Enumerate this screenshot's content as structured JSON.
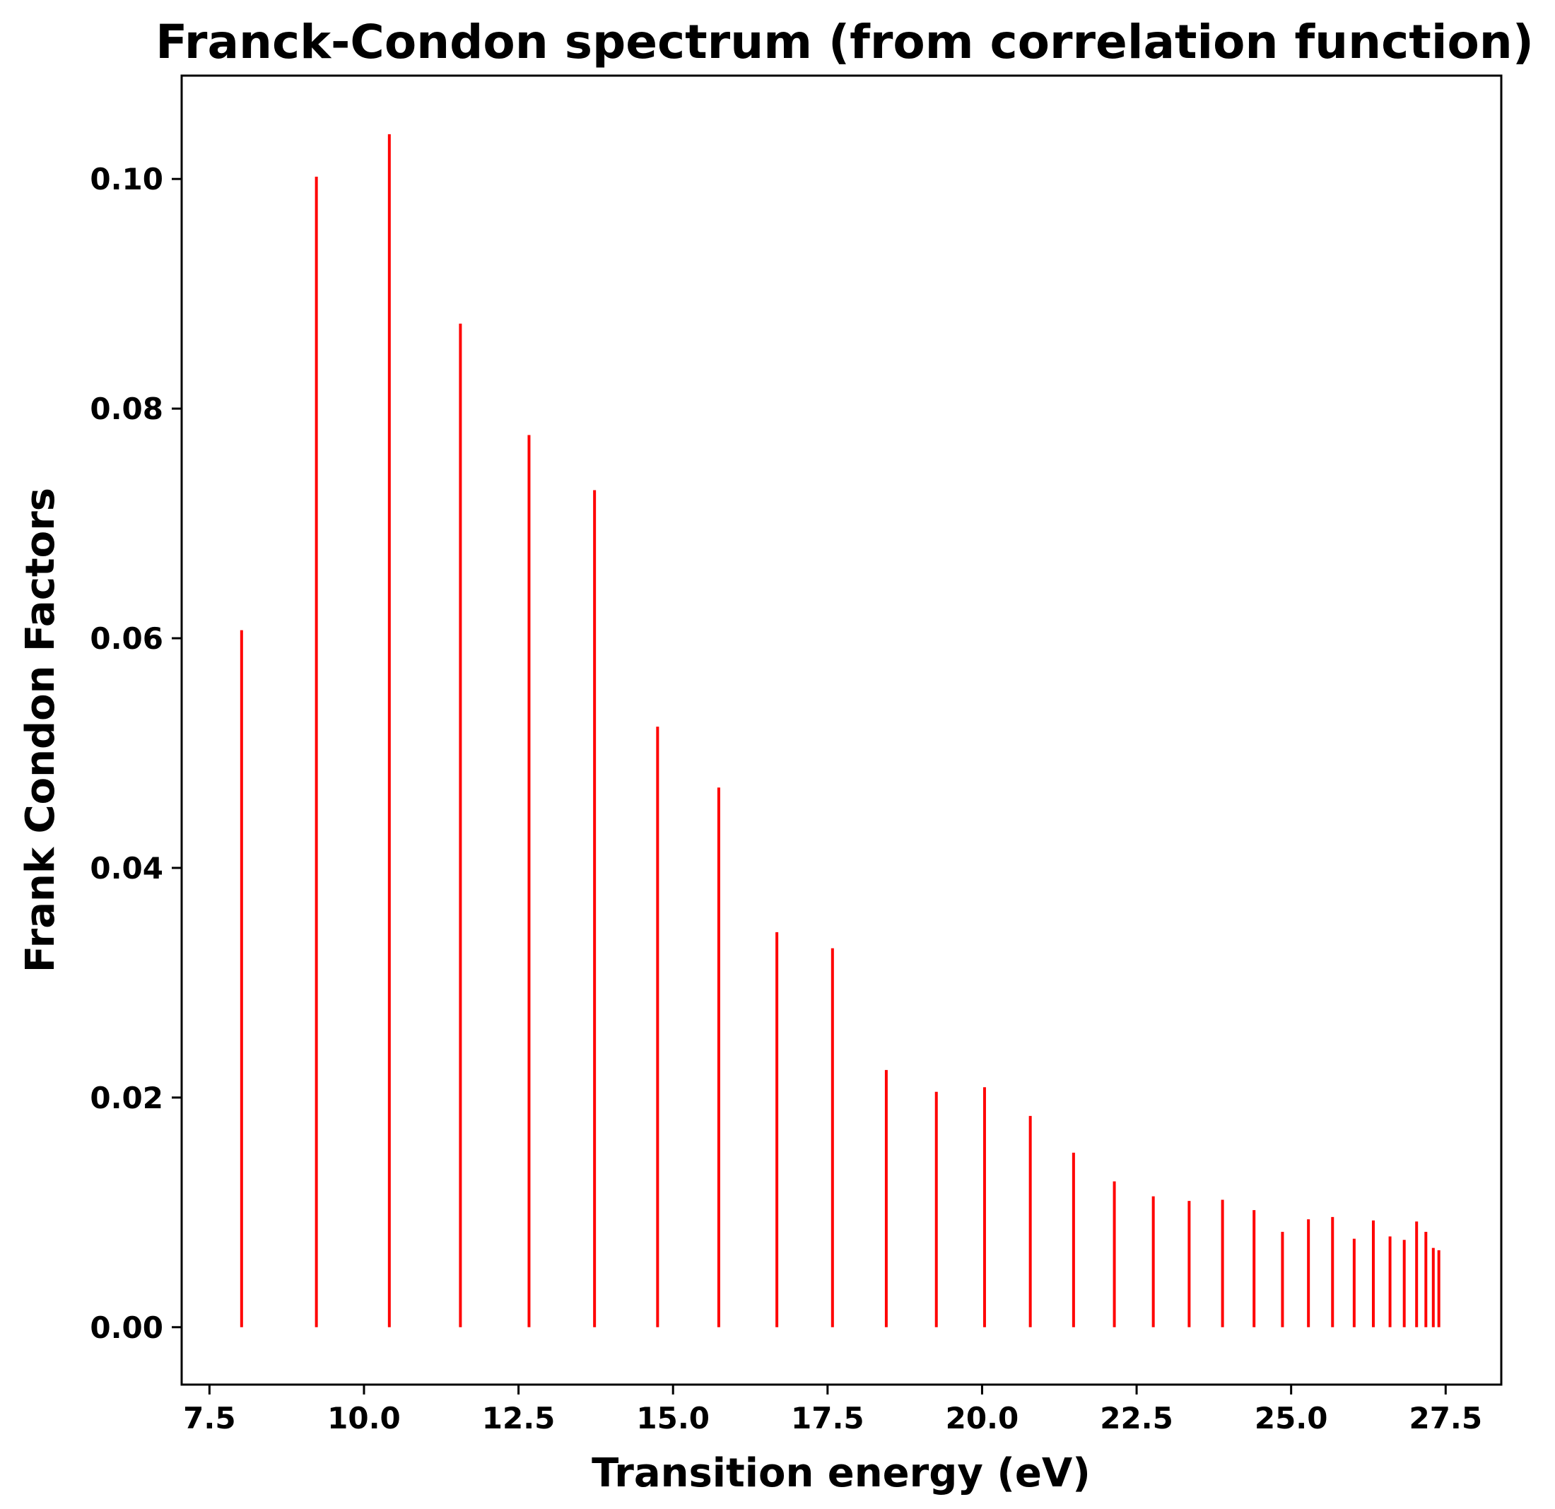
{
  "chart_data": {
    "type": "bar",
    "subtype": "stick-spectrum",
    "title": "Franck-Condon spectrum (from correlation function)",
    "xlabel": "Transition energy (eV)",
    "ylabel": "Frank Condon Factors",
    "xlim": [
      7.05,
      28.4
    ],
    "ylim": [
      -0.005,
      0.109
    ],
    "xticks": [
      "7.5",
      "10.0",
      "12.5",
      "15.0",
      "17.5",
      "20.0",
      "22.5",
      "25.0",
      "27.5"
    ],
    "yticks": [
      "0.00",
      "0.02",
      "0.04",
      "0.06",
      "0.08",
      "0.10"
    ],
    "grid": false,
    "color": "#ff0000",
    "series": [
      {
        "x": [
          8.02,
          9.23,
          10.41,
          11.56,
          12.67,
          13.73,
          14.75,
          15.74,
          16.68,
          17.58,
          18.45,
          19.26,
          20.04,
          20.78,
          21.48,
          22.14,
          22.77,
          23.35,
          23.89,
          24.4,
          24.86,
          25.28,
          25.67,
          26.02,
          26.33,
          26.6,
          26.83,
          27.03,
          27.18,
          27.3,
          27.39
        ],
        "y": [
          0.0607,
          0.1002,
          0.1039,
          0.0874,
          0.0777,
          0.0729,
          0.0523,
          0.047,
          0.0344,
          0.033,
          0.0224,
          0.0205,
          0.0209,
          0.0184,
          0.0152,
          0.0127,
          0.0114,
          0.011,
          0.0111,
          0.0102,
          0.0083,
          0.0094,
          0.0096,
          0.0077,
          0.0093,
          0.0079,
          0.0076,
          0.0092,
          0.0083,
          0.0069,
          0.0067
        ]
      }
    ]
  }
}
